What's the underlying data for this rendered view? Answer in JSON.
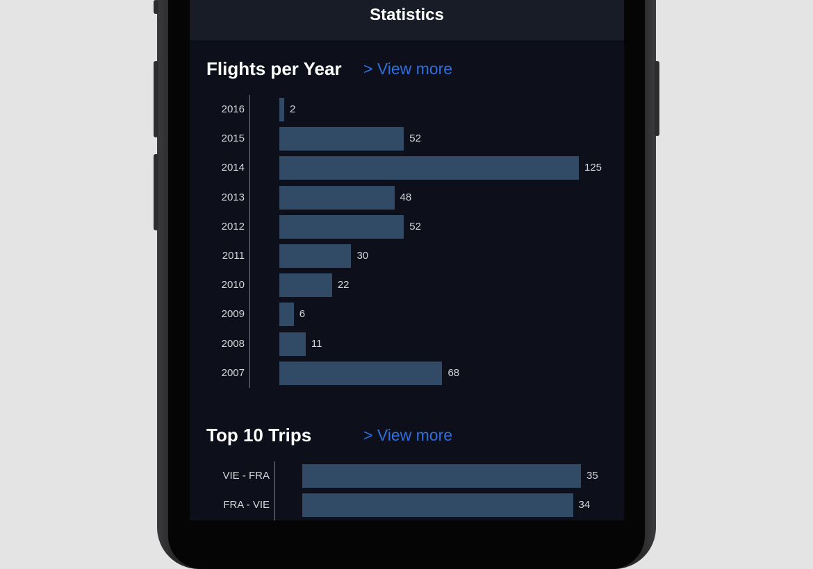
{
  "nav": {
    "title": "Statistics"
  },
  "flights_section": {
    "title": "Flights per Year",
    "view_more": "> View more"
  },
  "trips_section": {
    "title": "Top 10 Trips",
    "view_more": "> View more"
  },
  "colors": {
    "bar": "#314a66",
    "link": "#2f6fe0",
    "background": "#0d101a"
  },
  "chart_data": [
    {
      "type": "bar",
      "orientation": "horizontal",
      "title": "Flights per Year",
      "categories": [
        "2016",
        "2015",
        "2014",
        "2013",
        "2012",
        "2011",
        "2010",
        "2009",
        "2008",
        "2007"
      ],
      "values": [
        2,
        52,
        125,
        48,
        52,
        30,
        22,
        6,
        11,
        68
      ],
      "xlim": [
        0,
        125
      ],
      "grid": false
    },
    {
      "type": "bar",
      "orientation": "horizontal",
      "title": "Top 10 Trips",
      "categories": [
        "VIE - FRA",
        "FRA - VIE"
      ],
      "values": [
        35,
        34
      ],
      "xlim": [
        0,
        35
      ],
      "grid": false
    }
  ]
}
